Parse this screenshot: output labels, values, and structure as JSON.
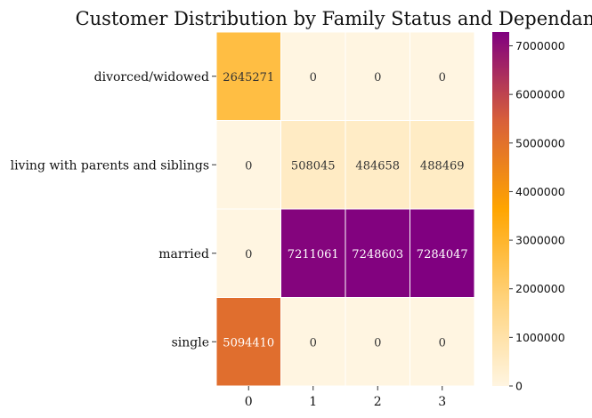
{
  "chart_data": {
    "type": "heatmap",
    "title": "Customer Distribution by Family Status and Dependants",
    "xlabel": "",
    "ylabel": "",
    "rows": [
      "divorced/widowed",
      "living with parents and siblings",
      "married",
      "single"
    ],
    "columns": [
      "0",
      "1",
      "2",
      "3"
    ],
    "values": [
      [
        2645271,
        0,
        0,
        0
      ],
      [
        0,
        508045,
        484658,
        488469
      ],
      [
        0,
        7211061,
        7248603,
        7284047
      ],
      [
        5094410,
        0,
        0,
        0
      ]
    ],
    "colorbar": {
      "min": 0,
      "max": 7284047,
      "ticks": [
        0,
        1000000,
        2000000,
        3000000,
        4000000,
        5000000,
        6000000,
        7000000
      ],
      "tick_labels": [
        "0",
        "1000000",
        "2000000",
        "3000000",
        "4000000",
        "5000000",
        "6000000",
        "7000000"
      ],
      "colormap": [
        "#fff5e1",
        "#ffd27a",
        "#ffa500",
        "#d8603a",
        "#800080"
      ]
    }
  }
}
